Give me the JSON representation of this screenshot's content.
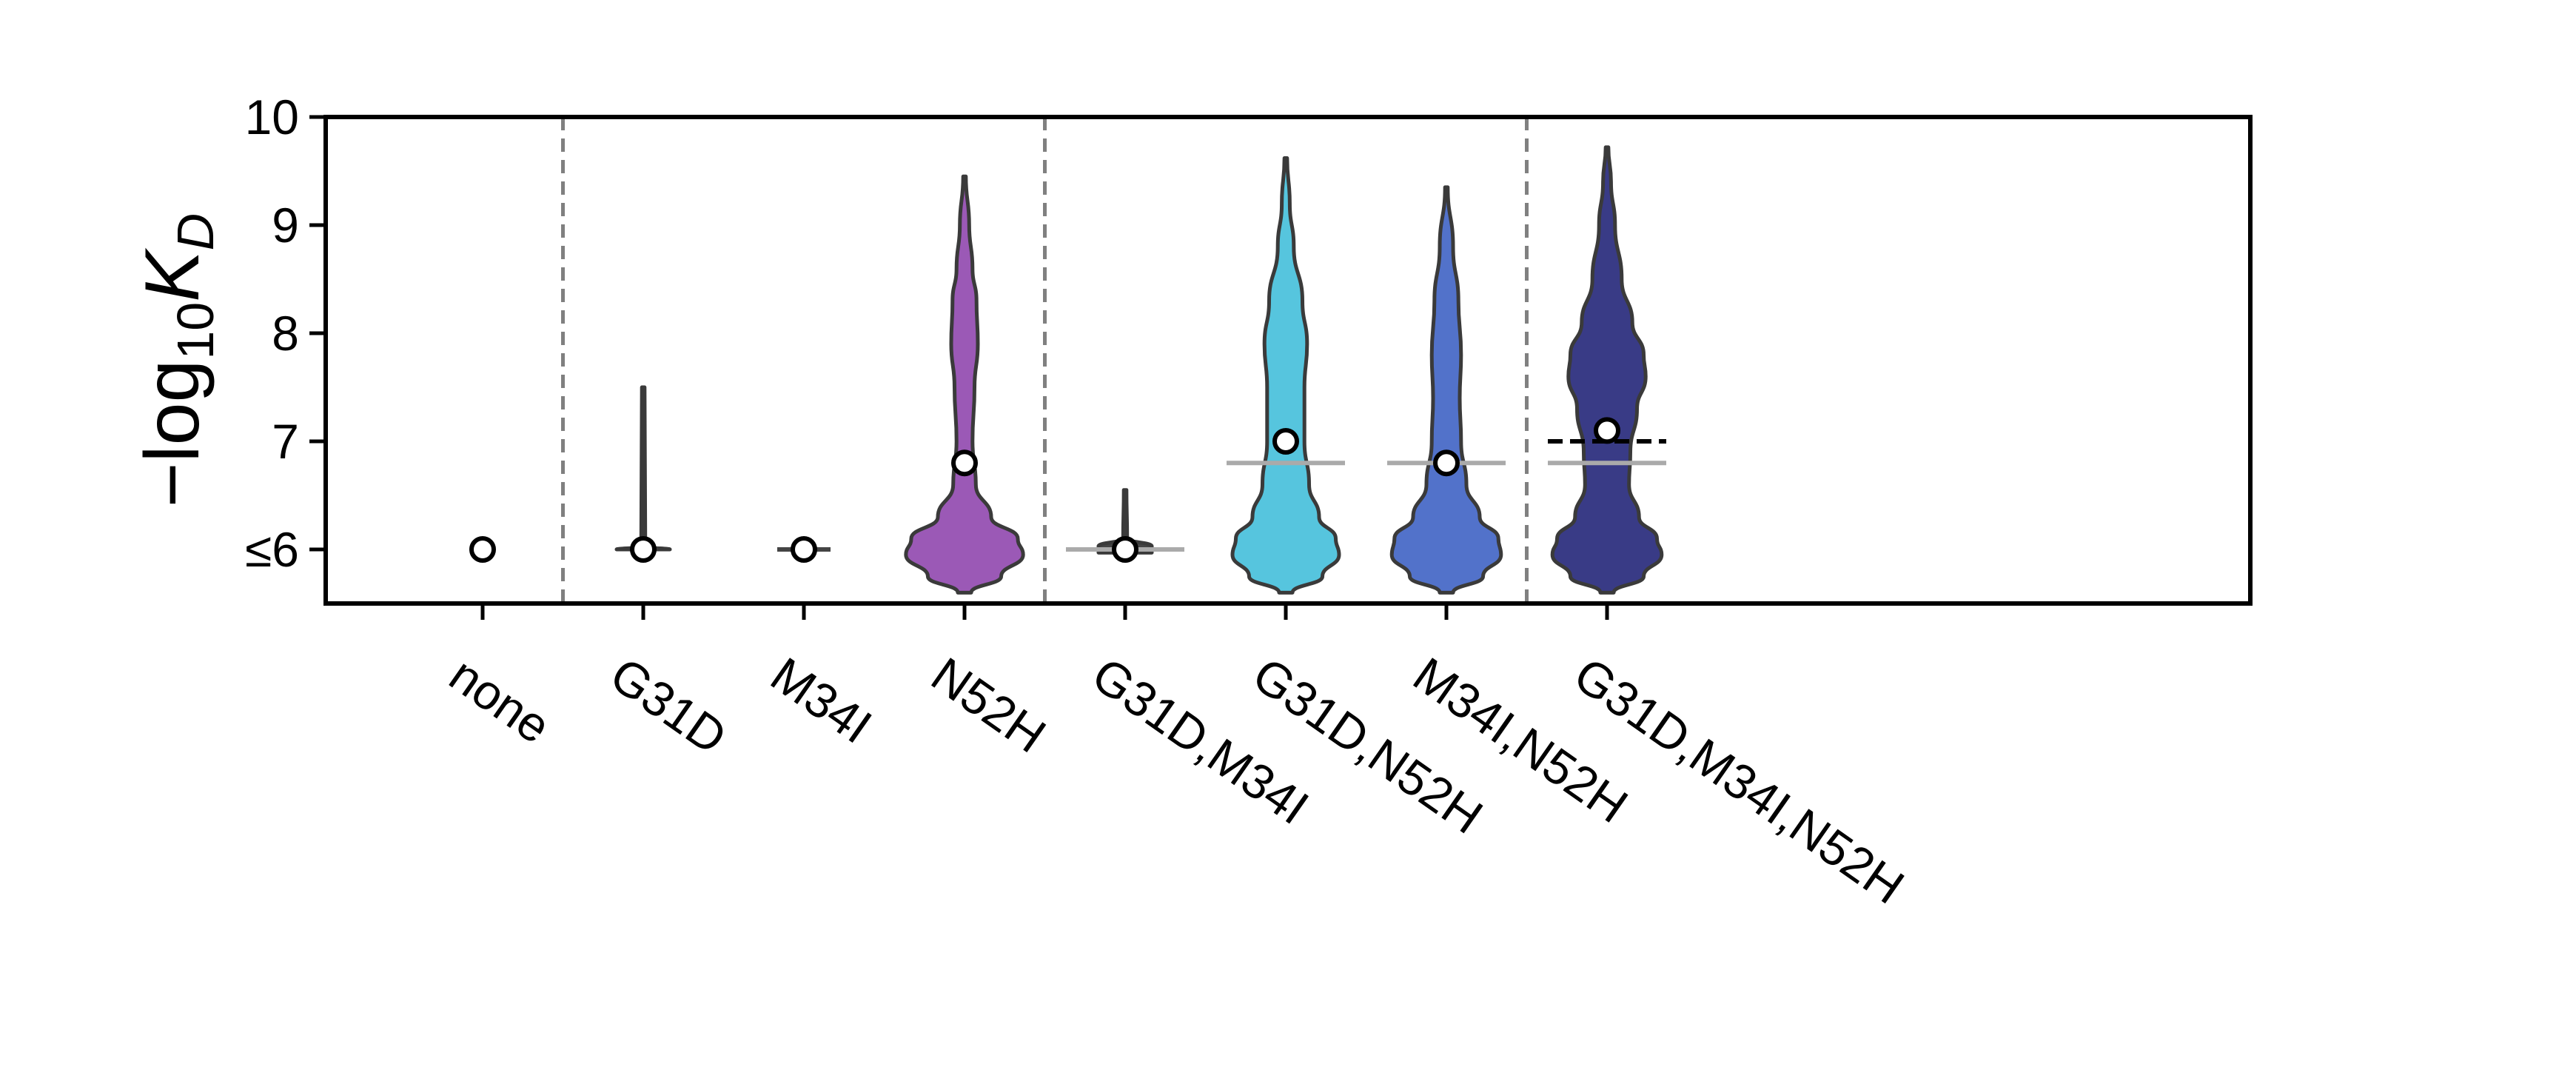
{
  "chart_data": {
    "type": "violin",
    "ylabel": "−log₁₀K_D",
    "ylabel_parts": {
      "prefix": "−log",
      "sub": "10",
      "K": "K",
      "D": "D"
    },
    "ylim": [
      5.5,
      10
    ],
    "yticks": [
      {
        "value": 6,
        "label": "≤6"
      },
      {
        "value": 7,
        "label": "7"
      },
      {
        "value": 8,
        "label": "8"
      },
      {
        "value": 9,
        "label": "9"
      },
      {
        "value": 10,
        "label": "10"
      }
    ],
    "group_separators_after_index": [
      0,
      3,
      6
    ],
    "categories": [
      {
        "label": "none",
        "color": null,
        "point": 6.0,
        "profile": [],
        "hline_gray": null,
        "hline_black_dashed": null
      },
      {
        "label": "G31D",
        "color": "#444444",
        "point": 6.0,
        "profile": [
          [
            6.0,
            0.4
          ],
          [
            6.02,
            0.1
          ],
          [
            6.1,
            0.03
          ],
          [
            7.5,
            0.02
          ]
        ],
        "hline_gray": null,
        "hline_black_dashed": null
      },
      {
        "label": "M34I",
        "color": "#444444",
        "point": 6.0,
        "profile": [
          [
            6.0,
            0.4
          ]
        ],
        "hline_gray": null,
        "hline_black_dashed": null
      },
      {
        "label": "N52H",
        "color": "#9b59b6",
        "point": 6.8,
        "profile": [
          [
            5.6,
            0.1
          ],
          [
            5.75,
            0.55
          ],
          [
            5.95,
            0.88
          ],
          [
            6.1,
            0.8
          ],
          [
            6.3,
            0.4
          ],
          [
            6.6,
            0.17
          ],
          [
            7.0,
            0.12
          ],
          [
            7.5,
            0.15
          ],
          [
            7.9,
            0.2
          ],
          [
            8.3,
            0.18
          ],
          [
            8.6,
            0.12
          ],
          [
            9.0,
            0.07
          ],
          [
            9.45,
            0.02
          ]
        ],
        "hline_gray": null,
        "hline_black_dashed": null
      },
      {
        "label": "G31D,M34I",
        "color": "#444444",
        "point": 6.0,
        "profile": [
          [
            5.97,
            0.4
          ],
          [
            6.0,
            0.4
          ],
          [
            6.03,
            0.4
          ],
          [
            6.1,
            0.03
          ],
          [
            6.55,
            0.02
          ]
        ],
        "hline_gray": 6.0,
        "hline_black_dashed": null
      },
      {
        "label": "G31D,N52H",
        "color": "#56c5de",
        "point": 7.0,
        "profile": [
          [
            5.6,
            0.1
          ],
          [
            5.75,
            0.55
          ],
          [
            5.95,
            0.8
          ],
          [
            6.1,
            0.75
          ],
          [
            6.3,
            0.5
          ],
          [
            6.6,
            0.35
          ],
          [
            7.0,
            0.28
          ],
          [
            7.5,
            0.28
          ],
          [
            7.9,
            0.32
          ],
          [
            8.3,
            0.25
          ],
          [
            8.8,
            0.12
          ],
          [
            9.2,
            0.06
          ],
          [
            9.62,
            0.02
          ]
        ],
        "hline_gray": 6.8,
        "hline_black_dashed": null
      },
      {
        "label": "M34I,N52H",
        "color": "#5272ca",
        "point": 6.8,
        "profile": [
          [
            5.6,
            0.1
          ],
          [
            5.75,
            0.55
          ],
          [
            5.95,
            0.82
          ],
          [
            6.1,
            0.78
          ],
          [
            6.3,
            0.5
          ],
          [
            6.6,
            0.3
          ],
          [
            7.0,
            0.22
          ],
          [
            7.4,
            0.2
          ],
          [
            7.8,
            0.22
          ],
          [
            8.3,
            0.18
          ],
          [
            8.8,
            0.1
          ],
          [
            9.35,
            0.02
          ]
        ],
        "hline_gray": 6.8,
        "hline_black_dashed": null
      },
      {
        "label": "G31D,M34I,N52H",
        "color": "#393b86",
        "point": 7.1,
        "profile": [
          [
            5.6,
            0.1
          ],
          [
            5.75,
            0.55
          ],
          [
            5.95,
            0.82
          ],
          [
            6.1,
            0.75
          ],
          [
            6.3,
            0.48
          ],
          [
            6.6,
            0.33
          ],
          [
            6.9,
            0.35
          ],
          [
            7.3,
            0.45
          ],
          [
            7.6,
            0.58
          ],
          [
            7.8,
            0.55
          ],
          [
            8.1,
            0.38
          ],
          [
            8.5,
            0.22
          ],
          [
            9.0,
            0.12
          ],
          [
            9.4,
            0.06
          ],
          [
            9.72,
            0.02
          ]
        ],
        "hline_gray": 6.8,
        "hline_black_dashed": 7.0
      }
    ]
  }
}
